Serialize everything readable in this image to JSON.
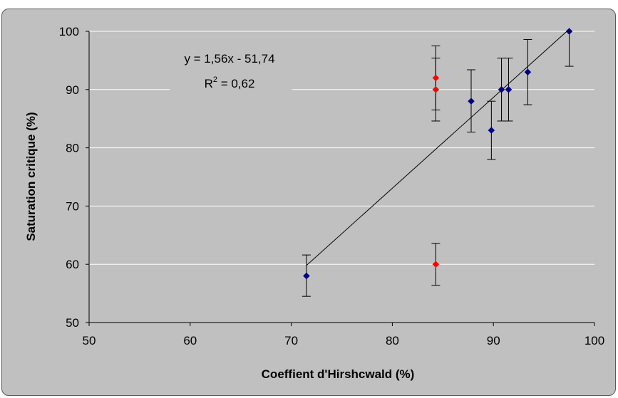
{
  "chart_data": {
    "type": "scatter",
    "xlabel": "Coeffient d'Hirshcwald  (%)",
    "ylabel": "Saturation critique (%)",
    "xlim": [
      50,
      100
    ],
    "ylim": [
      50,
      100
    ],
    "xticks": [
      50,
      60,
      70,
      80,
      90,
      100
    ],
    "yticks": [
      50,
      60,
      70,
      80,
      90,
      100
    ],
    "grid": "horizontal",
    "legend": "none",
    "series": [
      {
        "color": "#000080",
        "points": [
          {
            "x": 71.5,
            "y": 58,
            "err_low": 3.5,
            "err_high": 3.6
          },
          {
            "x": 87.8,
            "y": 88,
            "err_low": 5.3,
            "err_high": 5.4
          },
          {
            "x": 89.8,
            "y": 83,
            "err_low": 5,
            "err_high": 5
          },
          {
            "x": 90.8,
            "y": 90,
            "err_low": 5.4,
            "err_high": 5.4
          },
          {
            "x": 91.5,
            "y": 90,
            "err_low": 5.4,
            "err_high": 5.4
          },
          {
            "x": 93.4,
            "y": 93,
            "err_low": 5.6,
            "err_high": 5.6
          },
          {
            "x": 97.5,
            "y": 100,
            "err_low": 6,
            "err_high": 0
          }
        ]
      },
      {
        "color": "#ff0000",
        "points": [
          {
            "x": 84.3,
            "y": 92,
            "err_low": 5.5,
            "err_high": 5.5
          },
          {
            "x": 84.3,
            "y": 90,
            "err_low": 5.4,
            "err_high": 5.4
          },
          {
            "x": 84.3,
            "y": 60,
            "err_low": 3.6,
            "err_high": 3.6
          }
        ]
      }
    ],
    "trendline": {
      "type": "linear",
      "slope": 1.56,
      "intercept": -51.74,
      "x_range": [
        71.5,
        97.5
      ],
      "equation_text": "y = 1,56x - 51,74",
      "r2_prefix": "R",
      "r2_exponent": "2",
      "r2_value": " = 0,62",
      "color": "#000000"
    },
    "background_color": "#c0c0c0",
    "gridline_color": "#ffffff"
  }
}
